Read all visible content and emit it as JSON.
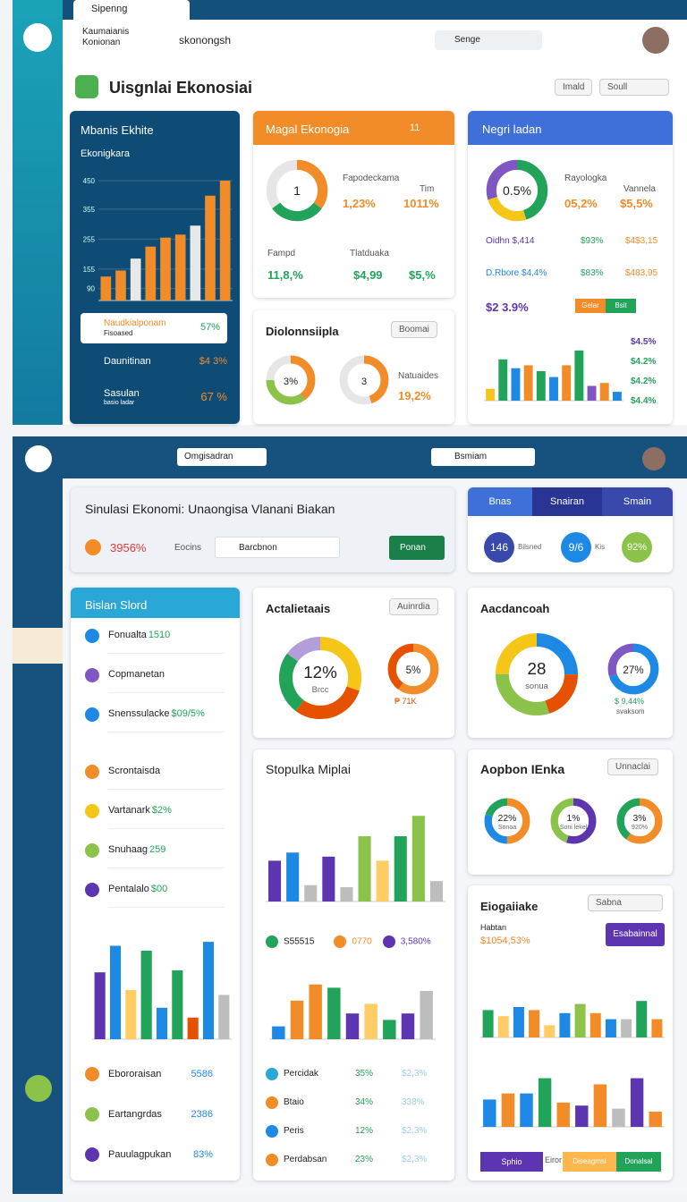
{
  "top": {
    "tab": "Sipenng",
    "brand": [
      "Kaumaianis",
      "Konionan"
    ],
    "breadcrumb": "skonongsh",
    "search": "Senge",
    "page_title": "Uisgnlai Ekonosiai",
    "actions": [
      "Imald",
      "Soull"
    ],
    "p1": {
      "title": "Mbanis Ekhite",
      "subtitle": "Ekonigkara",
      "chart": {
        "ylim": [
          50,
          480
        ],
        "yticks": [
          90,
          155,
          255,
          355,
          450
        ],
        "values": [
          130,
          150,
          190,
          230,
          260,
          270,
          300,
          400,
          450
        ],
        "colors": [
          "#f28c28",
          "#f28c28",
          "#e8e8e8",
          "#f28c28",
          "#f28c28",
          "#f28c28",
          "#e8e8e8",
          "#f28c28",
          "#f28c28"
        ]
      },
      "items": [
        {
          "label": "Naudkialponam",
          "sub": "Fisoased",
          "value": "57%"
        },
        {
          "label": "Daunitinan",
          "value": "$4 3%"
        },
        {
          "label": "Sasulan",
          "sub": "basio ladar",
          "value": "67 %"
        }
      ]
    },
    "p2": {
      "title": "Magal Ekonogia",
      "badge": "11",
      "donut": {
        "center": "1",
        "segments": [
          35,
          30,
          35
        ],
        "colors": [
          "#f28c28",
          "#22a35a",
          "#e6e6e6"
        ]
      },
      "stats": [
        {
          "label": "Fapodeckama",
          "value": "1,23%"
        },
        {
          "label": "Tim",
          "value": "1011%"
        }
      ],
      "rows": [
        {
          "label": "Fampd",
          "value": "11,8,%"
        },
        {
          "label": "Tlatduaka",
          "value": "$4,99"
        },
        {
          "value": "$5,%"
        }
      ]
    },
    "p3": {
      "title": "Diolonnsiipla",
      "select": "Boomai",
      "donuts": [
        {
          "center": "3%",
          "segments": [
            40,
            35,
            25
          ],
          "colors": [
            "#f28c28",
            "#8bc34a",
            "#e6e6e6"
          ]
        },
        {
          "center": "3",
          "segments": [
            45,
            55
          ],
          "colors": [
            "#f28c28",
            "#e6e6e6"
          ]
        }
      ],
      "stat": {
        "label": "Natuaides",
        "value": "19,2%"
      }
    },
    "p4": {
      "title": "Negri ladan",
      "donut": {
        "center": "0.5%",
        "segments": [
          45,
          25,
          30
        ],
        "colors": [
          "#22a35a",
          "#f5c518",
          "#7e57c2"
        ]
      },
      "stats": [
        {
          "label": "Rayologka",
          "value": "05,2%"
        },
        {
          "label": "Vannela",
          "value": "$5,5%"
        }
      ],
      "rows": [
        {
          "label": "Oidhn $,414",
          "a": "$93%",
          "b": "$4$3,15"
        },
        {
          "label": "D.Rbore $4,4%",
          "a": "$83%",
          "b": "$483,95"
        }
      ],
      "total": "$2 3.9%",
      "tags": [
        "Gelar",
        "Bsit"
      ],
      "chart": {
        "ylim": [
          0,
          100
        ],
        "values": [
          20,
          70,
          55,
          60,
          50,
          40,
          60,
          85,
          25,
          30,
          15
        ],
        "colors": [
          "#f5c518",
          "#22a35a",
          "#1e88e5",
          "#f28c28",
          "#22a35a",
          "#1e88e5",
          "#f28c28",
          "#22a35a",
          "#7e57c2",
          "#f28c28",
          "#1e88e5"
        ]
      },
      "side": [
        "$4.5%",
        "$4.2%",
        "$4.2%",
        "$4.4%"
      ]
    }
  },
  "bottom": {
    "search": "Omgisadran",
    "user": "Bsmiam",
    "intro": {
      "title": "Sinulasi Ekonomi: Unaongisa Vlanani Biakan",
      "value": "3956%",
      "filter": "Eocins",
      "input": "Barcbnon",
      "button": "Ponan"
    },
    "tabs": {
      "labels": [
        "Bnas",
        "Snairan",
        "Smain"
      ],
      "circles": [
        {
          "value": "146",
          "label": "Bilsned"
        },
        {
          "value": "9/6",
          "label": "Kis"
        },
        {
          "value": "92%"
        }
      ]
    },
    "list": {
      "title": "Bislan Slord",
      "items": [
        {
          "label": "Fonualta",
          "value": "1510"
        },
        {
          "label": "Copmanetan"
        },
        {
          "label": "Snenssulacke",
          "value": "$09/5%"
        },
        {
          "label": "Scrontaisda"
        },
        {
          "label": "Vartanark",
          "value": "$2%"
        },
        {
          "label": "Snuhaag",
          "value": "259"
        },
        {
          "label": "Pentalalo",
          "value": "$00"
        }
      ],
      "chart": {
        "ylim": [
          0,
          110
        ],
        "values": [
          68,
          95,
          50,
          90,
          32,
          70,
          22,
          99,
          45
        ],
        "colors": [
          "#5e35b1",
          "#1e88e5",
          "#ffcc66",
          "#22a35a",
          "#1e88e5",
          "#22a35a",
          "#e65100",
          "#1e88e5",
          "#bdbdbd"
        ]
      },
      "footer": [
        {
          "label": "Ebororaisan",
          "value": "5586"
        },
        {
          "label": "Eartangrdas",
          "value": "2386"
        },
        {
          "label": "Pauulagpukan",
          "value": "83%"
        }
      ]
    },
    "actual": {
      "title": "Actalietaais",
      "select": "Auinrdia",
      "donuts": [
        {
          "center": "12%",
          "sub": "Brcc",
          "segments": [
            30,
            30,
            25,
            15
          ],
          "colors": [
            "#f5c518",
            "#e65100",
            "#22a35a",
            "#b39ddb"
          ]
        },
        {
          "center": "5%",
          "segments": [
            60,
            40
          ],
          "colors": [
            "#f28c28",
            "#e65100"
          ]
        }
      ],
      "note": "₱ 71K"
    },
    "acc": {
      "title": "Aacdancoah",
      "donuts": [
        {
          "center": "28",
          "sub": "sonua",
          "segments": [
            25,
            20,
            30,
            25
          ],
          "colors": [
            "#1e88e5",
            "#e65100",
            "#8bc34a",
            "#f5c518"
          ]
        },
        {
          "center": "27%",
          "segments": [
            70,
            30
          ],
          "colors": [
            "#1e88e5",
            "#7e57c2"
          ]
        }
      ],
      "note": "$ 9,44%",
      "sub": "svaksom"
    },
    "stop": {
      "title": "Stopulka Miplai",
      "chart": {
        "ylim": [
          0,
          250
        ],
        "values": [
          100,
          120,
          40,
          110,
          35,
          160,
          100,
          160,
          210,
          50
        ],
        "colors": [
          "#5e35b1",
          "#1e88e5",
          "#bdbdbd",
          "#5e35b1",
          "#bdbdbd",
          "#8bc34a",
          "#ffcc66",
          "#22a35a",
          "#8bc34a",
          "#bdbdbd"
        ]
      },
      "legend": [
        "S55515",
        "0770",
        "3,580%"
      ],
      "chart2": {
        "ylim": [
          0,
          100
        ],
        "values": [
          20,
          60,
          85,
          80,
          40,
          55,
          30,
          40,
          75
        ],
        "colors": [
          "#1e88e5",
          "#f28c28",
          "#f28c28",
          "#22a35a",
          "#5e35b1",
          "#ffcc66",
          "#22a35a",
          "#5e35b1",
          "#bdbdbd"
        ]
      },
      "rows": [
        {
          "label": "Percidak",
          "a": "35%",
          "b": "$2,3%"
        },
        {
          "label": "Btaio",
          "a": "34%",
          "b": "338%"
        },
        {
          "label": "Peris",
          "a": "12%",
          "b": "$2.3%"
        },
        {
          "label": "Perdabsan",
          "a": "23%",
          "b": "$2,3%"
        }
      ]
    },
    "aop": {
      "title": "Aopbon IEnka",
      "select": "Unnaclai",
      "donuts": [
        {
          "center": "22%",
          "sub": "Sonoa",
          "segments": [
            50,
            30,
            20
          ],
          "colors": [
            "#f28c28",
            "#1e88e5",
            "#22a35a"
          ]
        },
        {
          "center": "1%",
          "sub": "Soni lekel",
          "segments": [
            55,
            45
          ],
          "colors": [
            "#5e35b1",
            "#8bc34a"
          ]
        },
        {
          "center": "3%",
          "sub": "920%",
          "segments": [
            60,
            40
          ],
          "colors": [
            "#f28c28",
            "#22a35a"
          ]
        }
      ]
    },
    "eio": {
      "title": "Eiogaiiake",
      "select": "Sabna",
      "label": "Habtan",
      "value": "$1054,53%",
      "button": "Esabainnal",
      "chart": {
        "ylim": [
          0,
          100
        ],
        "values": [
          45,
          35,
          50,
          45,
          20,
          40,
          55,
          40,
          30,
          30,
          60,
          30
        ],
        "colors": [
          "#22a35a",
          "#ffcc66",
          "#1e88e5",
          "#f28c28",
          "#ffcc66",
          "#1e88e5",
          "#8bc34a",
          "#f28c28",
          "#1e88e5",
          "#bdbdbd",
          "#22a35a",
          "#f28c28"
        ]
      },
      "chart2": {
        "ylim": [
          0,
          100
        ],
        "values": [
          45,
          55,
          55,
          80,
          40,
          35,
          70,
          30,
          80,
          25
        ],
        "colors": [
          "#1e88e5",
          "#f28c28",
          "#1e88e5",
          "#22a35a",
          "#f28c28",
          "#5e35b1",
          "#f28c28",
          "#bdbdbd",
          "#5e35b1",
          "#f28c28"
        ]
      },
      "buttons": [
        "Sphio",
        "Eiror",
        "Diseagmsi",
        "Donalsal"
      ]
    }
  }
}
